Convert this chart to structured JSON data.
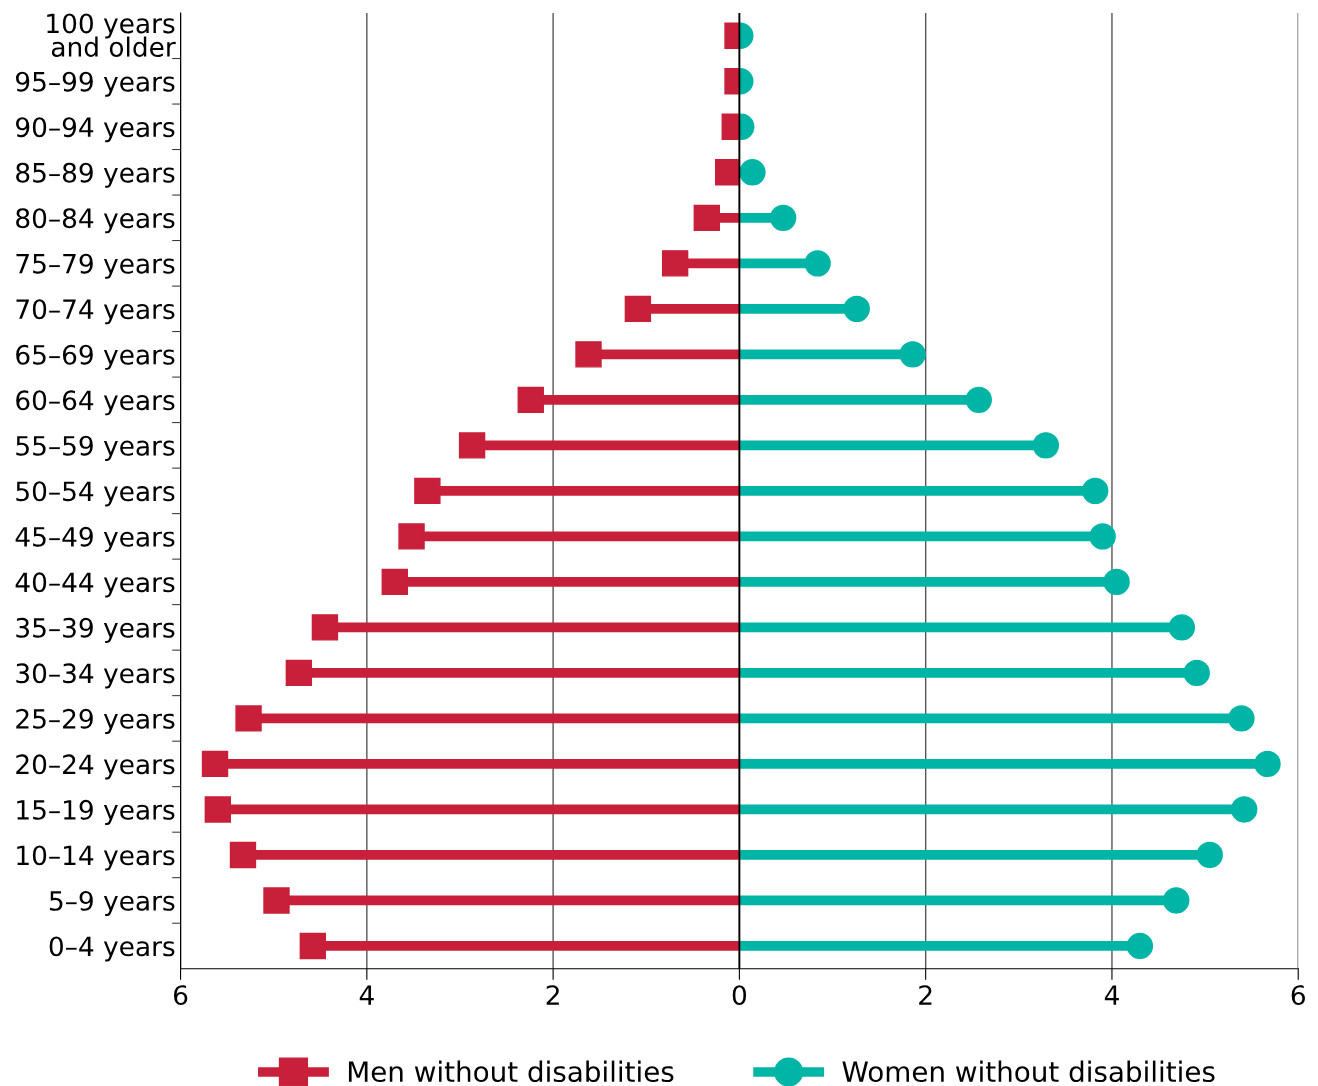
{
  "chart_data": {
    "type": "lollipop",
    "orientation": "horizontal",
    "categories": [
      "100 years\nand older",
      "95–99 years",
      "90–94 years",
      "85–89 years",
      "80–84 years",
      "75–79 years",
      "70–74 years",
      "65–69 years",
      "60–64 years",
      "55–59 years",
      "50–54 years",
      "45–49 years",
      "40–44 years",
      "35–39 years",
      "30–34 years",
      "25–29 years",
      "20–24 years",
      "15–19 years",
      "10–14 years",
      "5–9 years",
      "0–4 years"
    ],
    "series": [
      {
        "name": "Men without disabilities",
        "color": "#c8203a",
        "marker": "square",
        "values": [
          -0.02,
          -0.02,
          -0.05,
          -0.12,
          -0.35,
          -0.69,
          -1.09,
          -1.62,
          -2.24,
          -2.87,
          -3.35,
          -3.52,
          -3.7,
          -4.45,
          -4.73,
          -5.27,
          -5.63,
          -5.6,
          -5.33,
          -4.97,
          -4.58
        ]
      },
      {
        "name": "Women without disabilities",
        "color": "#00b5a5",
        "marker": "circle",
        "values": [
          0.01,
          0.01,
          0.02,
          0.14,
          0.47,
          0.84,
          1.26,
          1.86,
          2.57,
          3.29,
          3.82,
          3.9,
          4.05,
          4.75,
          4.91,
          5.39,
          5.67,
          5.42,
          5.05,
          4.69,
          4.3
        ]
      }
    ],
    "xlim": [
      -6,
      6
    ],
    "xticks": [
      {
        "value": -6,
        "label": "6"
      },
      {
        "value": -4,
        "label": "4"
      },
      {
        "value": -2,
        "label": "2"
      },
      0,
      2,
      4,
      6
    ],
    "grid": "x",
    "legend": "bottom"
  }
}
